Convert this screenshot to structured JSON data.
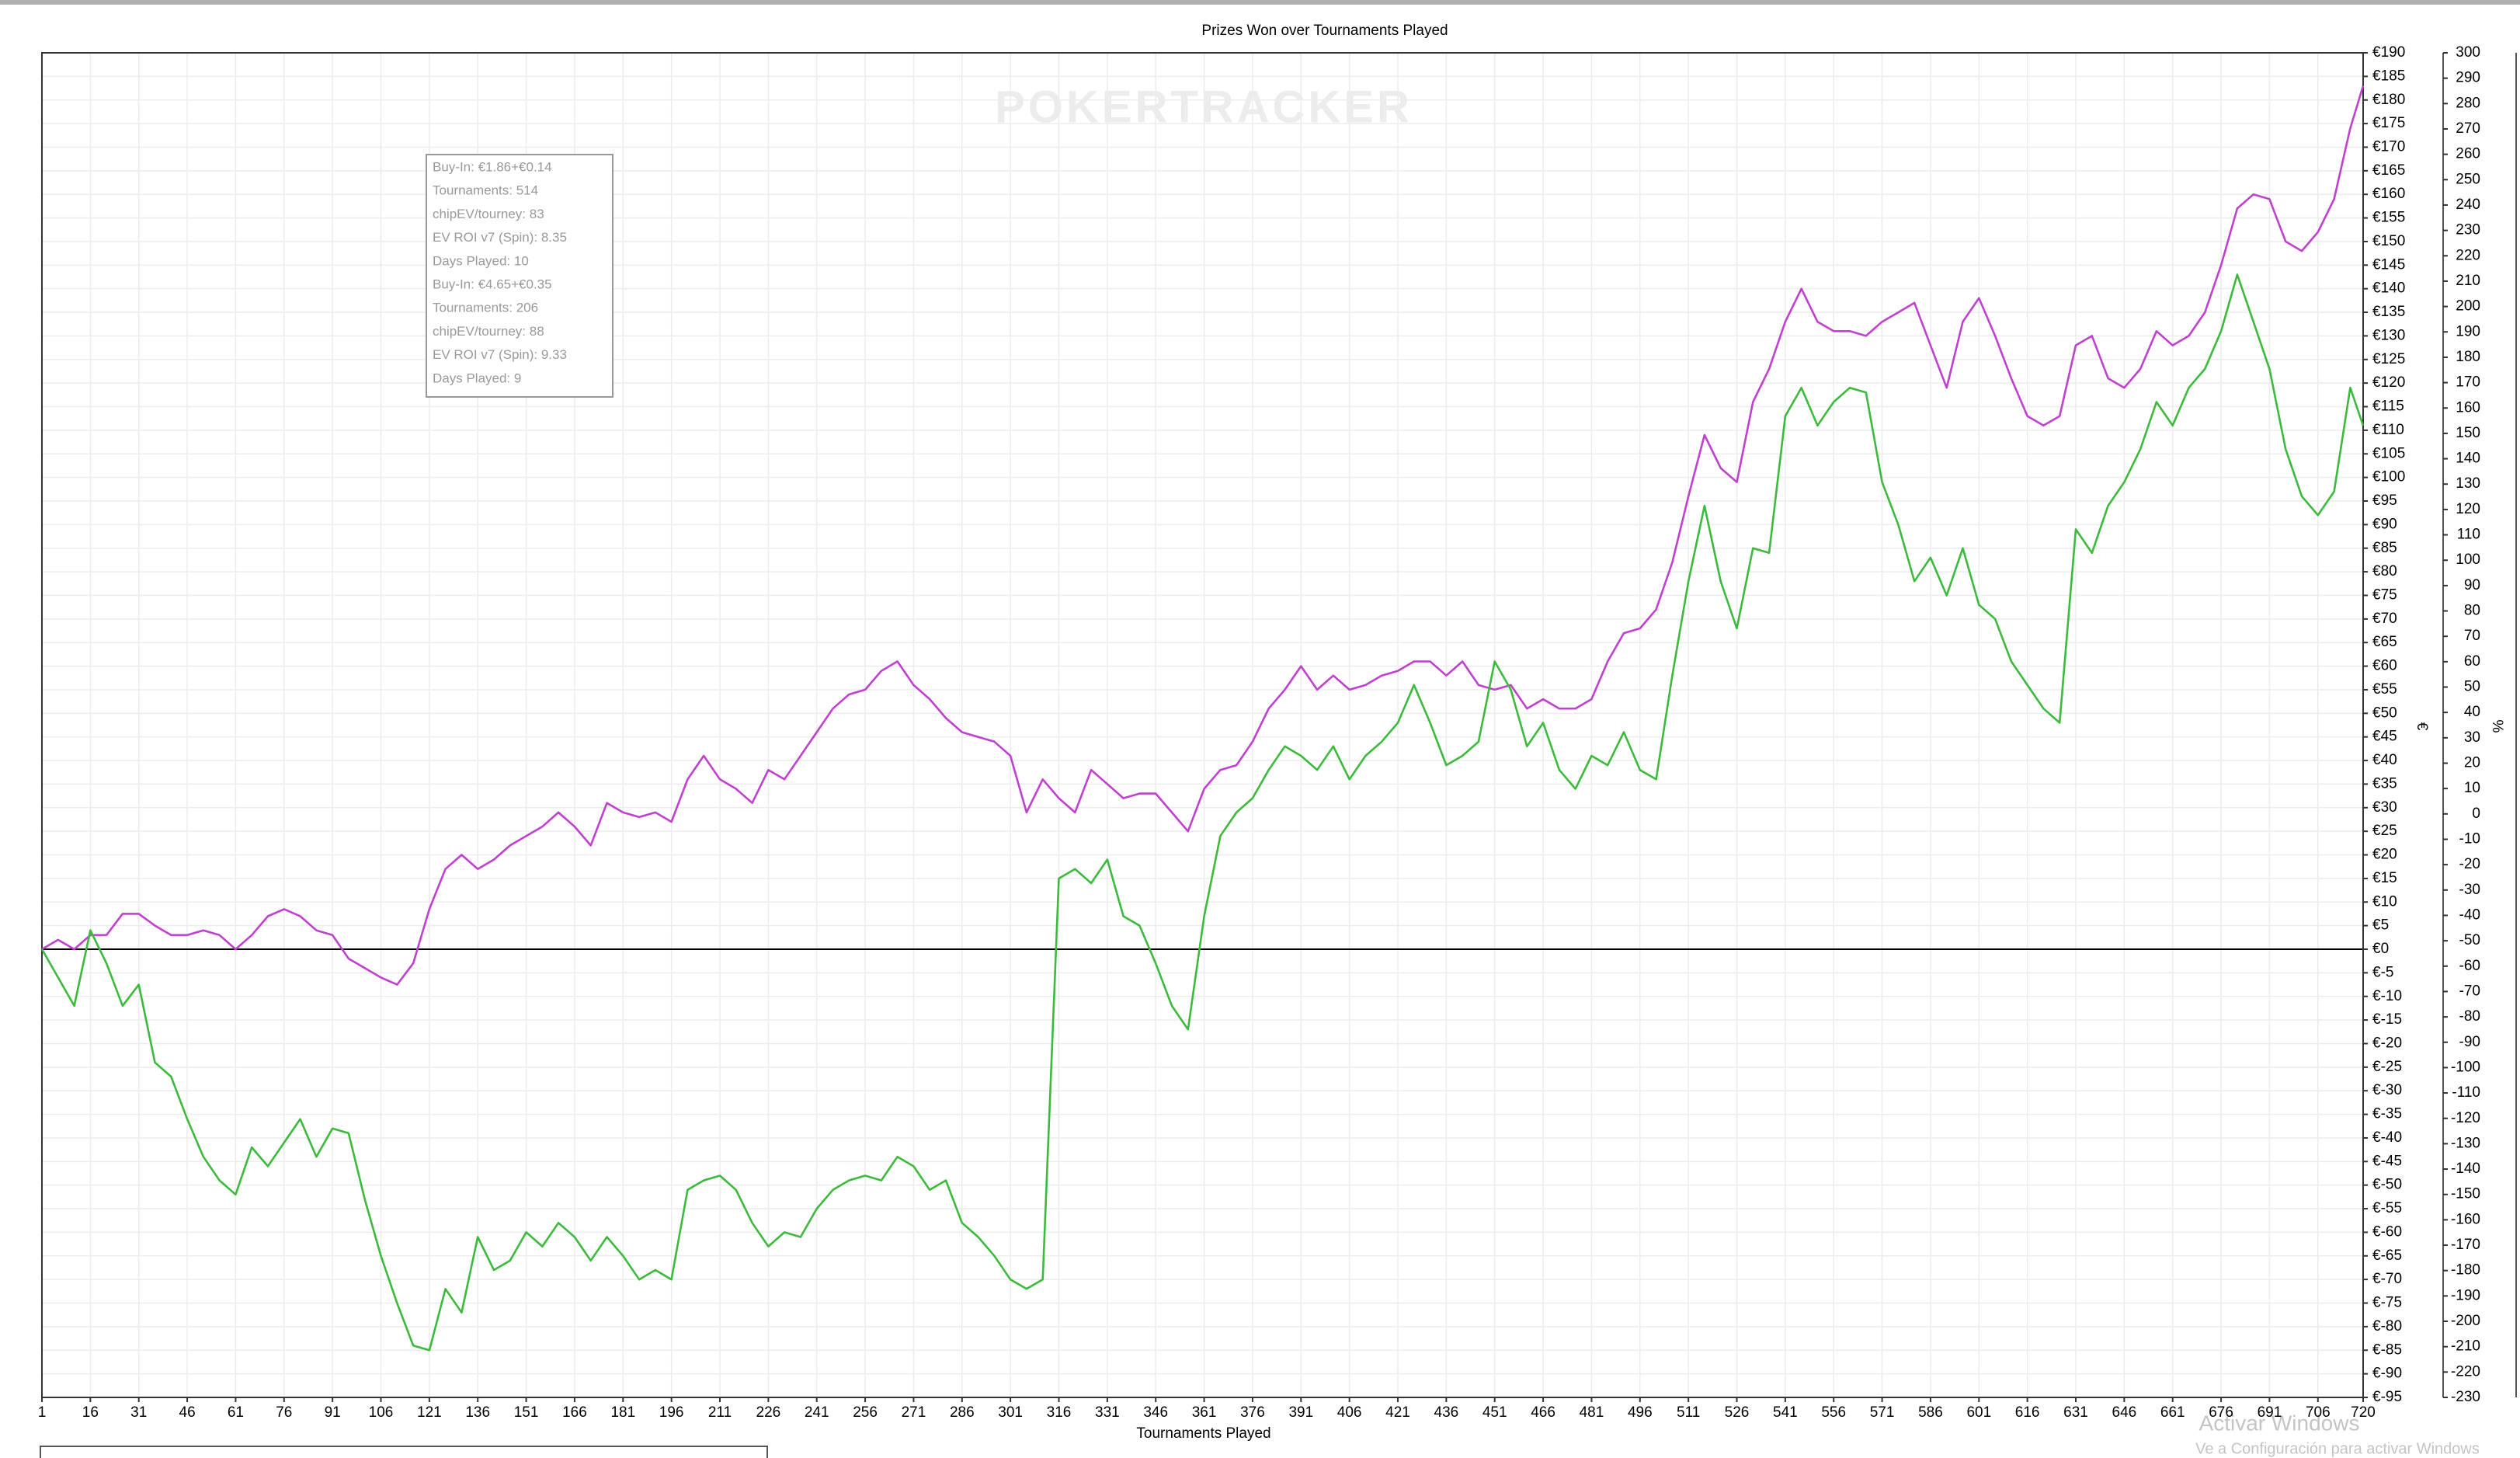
{
  "chart_data": {
    "type": "line",
    "title": "Prizes Won over Tournaments Played",
    "x_label": "Tournaments Played",
    "y_label": "€",
    "y2_label": "%",
    "watermark": "POKERTRACKER",
    "tooltip": [
      "Buy-In: €1.86+€0.14",
      "Tournaments: 514",
      "chipEV/tourney: 83",
      "EV ROI v7 (Spin): 8.35",
      "Days Played: 10",
      "Buy-In: €4.65+€0.35",
      "Tournaments: 206",
      "chipEV/tourney: 88",
      "EV ROI v7 (Spin): 9.33",
      "Days Played: 9"
    ],
    "os_overlay": [
      "Activar Windows",
      "Ve a Configuración para activar Windows"
    ],
    "grid": true,
    "xlim": [
      1,
      720
    ],
    "ylim": [
      -95,
      190
    ],
    "y2lim": [
      -230,
      300
    ],
    "xticks": [
      1,
      16,
      31,
      46,
      61,
      76,
      91,
      106,
      121,
      136,
      151,
      166,
      181,
      196,
      211,
      226,
      241,
      256,
      271,
      286,
      301,
      316,
      331,
      346,
      361,
      376,
      391,
      406,
      421,
      436,
      451,
      466,
      481,
      496,
      511,
      526,
      541,
      556,
      571,
      586,
      601,
      616,
      631,
      646,
      661,
      676,
      691,
      706,
      720
    ],
    "yticks": [
      {
        "value": 190,
        "label": "€190"
      },
      {
        "value": 185,
        "label": "€185"
      },
      {
        "value": 180,
        "label": "€180"
      },
      {
        "value": 175,
        "label": "€175"
      },
      {
        "value": 170,
        "label": "€170"
      },
      {
        "value": 165,
        "label": "€165"
      },
      {
        "value": 160,
        "label": "€160"
      },
      {
        "value": 155,
        "label": "€155"
      },
      {
        "value": 150,
        "label": "€150"
      },
      {
        "value": 145,
        "label": "€145"
      },
      {
        "value": 140,
        "label": "€140"
      },
      {
        "value": 135,
        "label": "€135"
      },
      {
        "value": 130,
        "label": "€130"
      },
      {
        "value": 125,
        "label": "€125"
      },
      {
        "value": 120,
        "label": "€120"
      },
      {
        "value": 115,
        "label": "€115"
      },
      {
        "value": 110,
        "label": "€110"
      },
      {
        "value": 105,
        "label": "€105"
      },
      {
        "value": 100,
        "label": "€100"
      },
      {
        "value": 95,
        "label": "€95"
      },
      {
        "value": 90,
        "label": "€90"
      },
      {
        "value": 85,
        "label": "€85"
      },
      {
        "value": 80,
        "label": "€80"
      },
      {
        "value": 75,
        "label": "€75"
      },
      {
        "value": 70,
        "label": "€70"
      },
      {
        "value": 65,
        "label": "€65"
      },
      {
        "value": 60,
        "label": "€60"
      },
      {
        "value": 55,
        "label": "€55"
      },
      {
        "value": 50,
        "label": "€50"
      },
      {
        "value": 45,
        "label": "€45"
      },
      {
        "value": 40,
        "label": "€40"
      },
      {
        "value": 35,
        "label": "€35"
      },
      {
        "value": 30,
        "label": "€30"
      },
      {
        "value": 25,
        "label": "€25"
      },
      {
        "value": 20,
        "label": "€20"
      },
      {
        "value": 15,
        "label": "€15"
      },
      {
        "value": 10,
        "label": "€10"
      },
      {
        "value": 5,
        "label": "€5"
      },
      {
        "value": 0,
        "label": "€0"
      },
      {
        "value": -5,
        "label": "€-5"
      },
      {
        "value": -10,
        "label": "€-10"
      },
      {
        "value": -15,
        "label": "€-15"
      },
      {
        "value": -20,
        "label": "€-20"
      },
      {
        "value": -25,
        "label": "€-25"
      },
      {
        "value": -30,
        "label": "€-30"
      },
      {
        "value": -35,
        "label": "€-35"
      },
      {
        "value": -40,
        "label": "€-40"
      },
      {
        "value": -45,
        "label": "€-45"
      },
      {
        "value": -50,
        "label": "€-50"
      },
      {
        "value": -55,
        "label": "€-55"
      },
      {
        "value": -60,
        "label": "€-60"
      },
      {
        "value": -65,
        "label": "€-65"
      },
      {
        "value": -70,
        "label": "€-70"
      },
      {
        "value": -75,
        "label": "€-75"
      },
      {
        "value": -80,
        "label": "€-80"
      },
      {
        "value": -85,
        "label": "€-85"
      },
      {
        "value": -90,
        "label": "€-90"
      },
      {
        "value": -95,
        "label": "€-95"
      }
    ],
    "y2ticks": [
      300,
      290,
      280,
      270,
      260,
      250,
      240,
      230,
      220,
      210,
      200,
      190,
      180,
      170,
      160,
      150,
      140,
      130,
      120,
      110,
      100,
      90,
      80,
      70,
      60,
      50,
      40,
      30,
      20,
      10,
      0,
      -10,
      -20,
      -30,
      -40,
      -50,
      -60,
      -70,
      -80,
      -90,
      -100,
      -110,
      -120,
      -130,
      -140,
      -150,
      -160,
      -170,
      -180,
      -190,
      -200,
      -210,
      -220,
      -230
    ],
    "x": [
      1,
      6,
      11,
      16,
      21,
      26,
      31,
      36,
      41,
      46,
      51,
      56,
      61,
      66,
      71,
      76,
      81,
      86,
      91,
      96,
      101,
      106,
      111,
      116,
      121,
      126,
      131,
      136,
      141,
      146,
      151,
      156,
      161,
      166,
      171,
      176,
      181,
      186,
      191,
      196,
      201,
      206,
      211,
      216,
      221,
      226,
      231,
      236,
      241,
      246,
      251,
      256,
      261,
      266,
      271,
      276,
      281,
      286,
      291,
      296,
      301,
      306,
      311,
      316,
      321,
      326,
      331,
      336,
      341,
      346,
      351,
      356,
      361,
      366,
      371,
      376,
      381,
      386,
      391,
      396,
      401,
      406,
      411,
      416,
      421,
      426,
      431,
      436,
      441,
      446,
      451,
      456,
      461,
      466,
      471,
      476,
      481,
      486,
      491,
      496,
      501,
      506,
      511,
      516,
      521,
      526,
      531,
      536,
      541,
      546,
      551,
      556,
      561,
      566,
      571,
      576,
      581,
      586,
      591,
      596,
      601,
      606,
      611,
      616,
      621,
      626,
      631,
      636,
      641,
      646,
      651,
      656,
      661,
      666,
      671,
      676,
      681,
      686,
      691,
      696,
      701,
      706,
      711,
      716,
      720
    ],
    "series": [
      {
        "color": "#c040d0",
        "values": [
          0,
          2,
          0,
          3,
          3,
          7.5,
          7.5,
          5,
          3,
          3,
          4,
          3,
          0,
          3,
          7,
          8.5,
          7,
          4,
          3,
          -2,
          -4,
          -6,
          -7.5,
          -3,
          8.5,
          17,
          20,
          17,
          19,
          22,
          24,
          26,
          29,
          26,
          22,
          31,
          29,
          28,
          29,
          27,
          36,
          41,
          36,
          34,
          31,
          38,
          36,
          41,
          46,
          51,
          54,
          55,
          59,
          61,
          56,
          53,
          49,
          46,
          45,
          44,
          41,
          29,
          36,
          32,
          29,
          38,
          35,
          32,
          33,
          33,
          29,
          25,
          34,
          38,
          39,
          44,
          51,
          55,
          60,
          55,
          58,
          55,
          56,
          58,
          59,
          61,
          61,
          58,
          61,
          56,
          55,
          56,
          51,
          53,
          51,
          51,
          53,
          61,
          67,
          68,
          72,
          82,
          96,
          109,
          102,
          99,
          116,
          123,
          133,
          140,
          133,
          131,
          131,
          130,
          133,
          135,
          137,
          128,
          119,
          133,
          138,
          130,
          121,
          113,
          111,
          113,
          128,
          130,
          121,
          119,
          123,
          131,
          128,
          130,
          135,
          145,
          157,
          160,
          159,
          150,
          148,
          152,
          159,
          174,
          183
        ]
      },
      {
        "color": "#3cba3c",
        "values": [
          0,
          -6,
          -12,
          4,
          -3,
          -12,
          -7.5,
          -24,
          -27,
          -36,
          -44,
          -49,
          -52,
          -42,
          -46,
          -41,
          -36,
          -44,
          -38,
          -39,
          -53,
          -65,
          -75,
          -84,
          -85,
          -72,
          -77,
          -61,
          -68,
          -66,
          -60,
          -63,
          -58,
          -61,
          -66,
          -61,
          -65,
          -70,
          -68,
          -70,
          -51,
          -49,
          -48,
          -51,
          -58,
          -63,
          -60,
          -61,
          -55,
          -51,
          -49,
          -48,
          -49,
          -44,
          -46,
          -51,
          -49,
          -58,
          -61,
          -65,
          -70,
          -72,
          -70,
          15,
          17,
          14,
          19,
          7,
          5,
          -3,
          -12,
          -17,
          7,
          24,
          29,
          32,
          38,
          43,
          41,
          38,
          43,
          36,
          41,
          44,
          48,
          56,
          48,
          39,
          41,
          44,
          61,
          55,
          43,
          48,
          38,
          34,
          41,
          39,
          46,
          38,
          36,
          58,
          78,
          94,
          78,
          68,
          85,
          84,
          113,
          119,
          111,
          116,
          119,
          118,
          99,
          90,
          78,
          83,
          75,
          85,
          73,
          70,
          61,
          56,
          51,
          48,
          89,
          84,
          94,
          99,
          106,
          116,
          111,
          119,
          123,
          131,
          143,
          133,
          123,
          106,
          96,
          92,
          97,
          119,
          111
        ]
      }
    ]
  }
}
